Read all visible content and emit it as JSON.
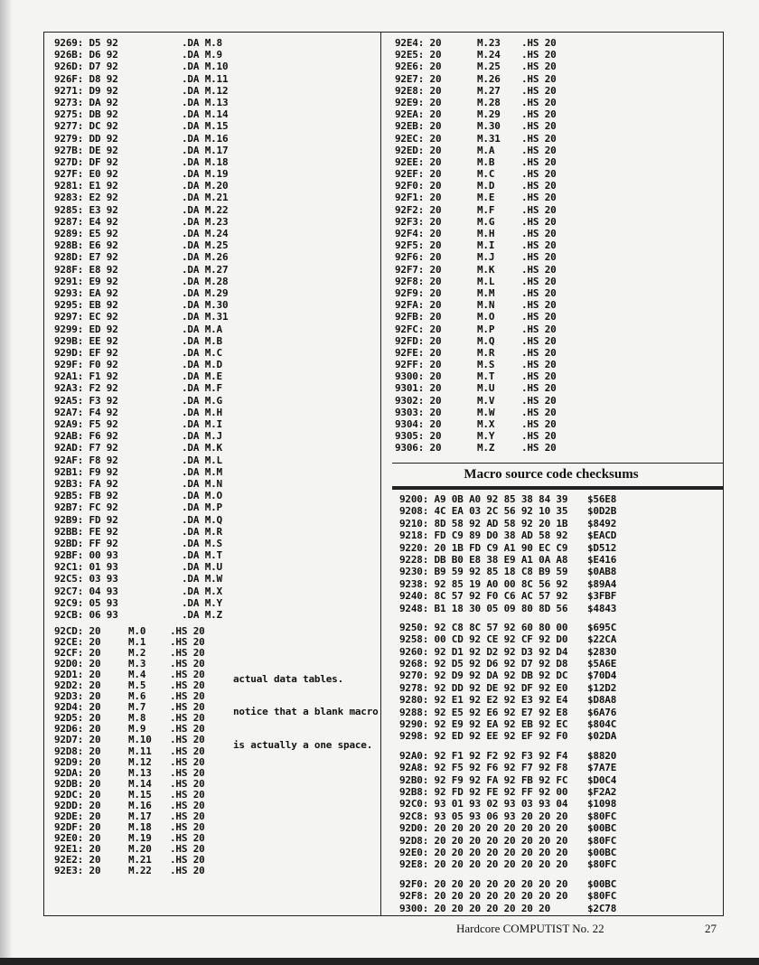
{
  "left_da": [
    [
      "9269: D5 92",
      ".DA M.8"
    ],
    [
      "926B: D6 92",
      ".DA M.9"
    ],
    [
      "926D: D7 92",
      ".DA M.10"
    ],
    [
      "926F: D8 92",
      ".DA M.11"
    ],
    [
      "9271: D9 92",
      ".DA M.12"
    ],
    [
      "9273: DA 92",
      ".DA M.13"
    ],
    [
      "9275: DB 92",
      ".DA M.14"
    ],
    [
      "9277: DC 92",
      ".DA M.15"
    ],
    [
      "9279: DD 92",
      ".DA M.16"
    ],
    [
      "927B: DE 92",
      ".DA M.17"
    ],
    [
      "927D: DF 92",
      ".DA M.18"
    ],
    [
      "927F: E0 92",
      ".DA M.19"
    ],
    [
      "9281: E1 92",
      ".DA M.20"
    ],
    [
      "9283: E2 92",
      ".DA M.21"
    ],
    [
      "9285: E3 92",
      ".DA M.22"
    ],
    [
      "9287: E4 92",
      ".DA M.23"
    ],
    [
      "9289: E5 92",
      ".DA M.24"
    ],
    [
      "928B: E6 92",
      ".DA M.25"
    ],
    [
      "928D: E7 92",
      ".DA M.26"
    ],
    [
      "928F: E8 92",
      ".DA M.27"
    ],
    [
      "9291: E9 92",
      ".DA M.28"
    ],
    [
      "9293: EA 92",
      ".DA M.29"
    ],
    [
      "9295: EB 92",
      ".DA M.30"
    ],
    [
      "9297: EC 92",
      ".DA M.31"
    ],
    [
      "9299: ED 92",
      ".DA M.A"
    ],
    [
      "929B: EE 92",
      ".DA M.B"
    ],
    [
      "929D: EF 92",
      ".DA M.C"
    ],
    [
      "929F: F0 92",
      ".DA M.D"
    ],
    [
      "92A1: F1 92",
      ".DA M.E"
    ],
    [
      "92A3: F2 92",
      ".DA M.F"
    ],
    [
      "92A5: F3 92",
      ".DA M.G"
    ],
    [
      "92A7: F4 92",
      ".DA M.H"
    ],
    [
      "92A9: F5 92",
      ".DA M.I"
    ],
    [
      "92AB: F6 92",
      ".DA M.J"
    ],
    [
      "92AD: F7 92",
      ".DA M.K"
    ],
    [
      "92AF: F8 92",
      ".DA M.L"
    ],
    [
      "92B1: F9 92",
      ".DA M.M"
    ],
    [
      "92B3: FA 92",
      ".DA M.N"
    ],
    [
      "92B5: FB 92",
      ".DA M.O"
    ],
    [
      "92B7: FC 92",
      ".DA M.P"
    ],
    [
      "92B9: FD 92",
      ".DA M.Q"
    ],
    [
      "92BB: FE 92",
      ".DA M.R"
    ],
    [
      "92BD: FF 92",
      ".DA M.S"
    ],
    [
      "92BF: 00 93",
      ".DA M.T"
    ],
    [
      "92C1: 01 93",
      ".DA M.U"
    ],
    [
      "92C5: 03 93",
      ".DA M.W"
    ],
    [
      "92C7: 04 93",
      ".DA M.X"
    ],
    [
      "92C9: 05 93",
      ".DA M.Y"
    ],
    [
      "92CB: 06 93",
      ".DA M.Z"
    ]
  ],
  "left_hs": [
    [
      "92CD: 20",
      "M.0",
      ".HS 20"
    ],
    [
      "92CE: 20",
      "M.1",
      ".HS 20"
    ],
    [
      "92CF: 20",
      "M.2",
      ".HS 20"
    ],
    [
      "92D0: 20",
      "M.3",
      ".HS 20"
    ],
    [
      "92D1: 20",
      "M.4",
      ".HS 20"
    ],
    [
      "92D2: 20",
      "M.5",
      ".HS 20"
    ],
    [
      "92D3: 20",
      "M.6",
      ".HS 20"
    ],
    [
      "92D4: 20",
      "M.7",
      ".HS 20"
    ],
    [
      "92D5: 20",
      "M.8",
      ".HS 20"
    ],
    [
      "92D6: 20",
      "M.9",
      ".HS 20"
    ],
    [
      "92D7: 20",
      "M.10",
      ".HS 20"
    ],
    [
      "92D8: 20",
      "M.11",
      ".HS 20"
    ],
    [
      "92D9: 20",
      "M.12",
      ".HS 20"
    ],
    [
      "92DA: 20",
      "M.13",
      ".HS 20"
    ],
    [
      "92DB: 20",
      "M.14",
      ".HS 20"
    ],
    [
      "92DC: 20",
      "M.15",
      ".HS 20"
    ],
    [
      "92DD: 20",
      "M.16",
      ".HS 20"
    ],
    [
      "92DE: 20",
      "M.17",
      ".HS 20"
    ],
    [
      "92DF: 20",
      "M.18",
      ".HS 20"
    ],
    [
      "92E0: 20",
      "M.19",
      ".HS 20"
    ],
    [
      "92E1: 20",
      "M.20",
      ".HS 20"
    ],
    [
      "92E2: 20",
      "M.21",
      ".HS 20"
    ],
    [
      "92E3: 20",
      "M.22",
      ".HS 20"
    ]
  ],
  "comment": [
    "actual data tables.",
    "notice that a blank macro",
    "is actually a one space."
  ],
  "right_hs": [
    [
      "92E4: 20",
      "M.23",
      ".HS 20"
    ],
    [
      "92E5: 20",
      "M.24",
      ".HS 20"
    ],
    [
      "92E6: 20",
      "M.25",
      ".HS 20"
    ],
    [
      "92E7: 20",
      "M.26",
      ".HS 20"
    ],
    [
      "92E8: 20",
      "M.27",
      ".HS 20"
    ],
    [
      "92E9: 20",
      "M.28",
      ".HS 20"
    ],
    [
      "92EA: 20",
      "M.29",
      ".HS 20"
    ],
    [
      "92EB: 20",
      "M.30",
      ".HS 20"
    ],
    [
      "92EC: 20",
      "M.31",
      ".HS 20"
    ],
    [
      "92ED: 20",
      "M.A",
      ".HS 20"
    ],
    [
      "92EE: 20",
      "M.B",
      ".HS 20"
    ],
    [
      "92EF: 20",
      "M.C",
      ".HS 20"
    ],
    [
      "92F0: 20",
      "M.D",
      ".HS 20"
    ],
    [
      "92F1: 20",
      "M.E",
      ".HS 20"
    ],
    [
      "92F2: 20",
      "M.F",
      ".HS 20"
    ],
    [
      "92F3: 20",
      "M.G",
      ".HS 20"
    ],
    [
      "92F4: 20",
      "M.H",
      ".HS 20"
    ],
    [
      "92F5: 20",
      "M.I",
      ".HS 20"
    ],
    [
      "92F6: 20",
      "M.J",
      ".HS 20"
    ],
    [
      "92F7: 20",
      "M.K",
      ".HS 20"
    ],
    [
      "92F8: 20",
      "M.L",
      ".HS 20"
    ],
    [
      "92F9: 20",
      "M.M",
      ".HS 20"
    ],
    [
      "92FA: 20",
      "M.N",
      ".HS 20"
    ],
    [
      "92FB: 20",
      "M.O",
      ".HS 20"
    ],
    [
      "92FC: 20",
      "M.P",
      ".HS 20"
    ],
    [
      "92FD: 20",
      "M.Q",
      ".HS 20"
    ],
    [
      "92FE: 20",
      "M.R",
      ".HS 20"
    ],
    [
      "92FF: 20",
      "M.S",
      ".HS 20"
    ],
    [
      "9300: 20",
      "M.T",
      ".HS 20"
    ],
    [
      "9301: 20",
      "M.U",
      ".HS 20"
    ],
    [
      "9302: 20",
      "M.V",
      ".HS 20"
    ],
    [
      "9303: 20",
      "M.W",
      ".HS 20"
    ],
    [
      "9304: 20",
      "M.X",
      ".HS 20"
    ],
    [
      "9305: 20",
      "M.Y",
      ".HS 20"
    ],
    [
      "9306: 20",
      "M.Z",
      ".HS 20"
    ]
  ],
  "checksums_title": "Macro source code checksums",
  "checksums": [
    [
      [
        "9200: A9 0B A0 92 85 38 84 39",
        "$56E8"
      ],
      [
        "9208: 4C EA 03 2C 56 92 10 35",
        "$0D2B"
      ],
      [
        "9210: 8D 58 92 AD 58 92 20 1B",
        "$8492"
      ],
      [
        "9218: FD C9 89 D0 38 AD 58 92",
        "$EACD"
      ],
      [
        "9220: 20 1B FD C9 A1 90 EC C9",
        "$D512"
      ],
      [
        "9228: DB B0 E8 38 E9 A1 0A A8",
        "$E416"
      ],
      [
        "9230: B9 59 92 85 18 C8 B9 59",
        "$0AB8"
      ],
      [
        "9238: 92 85 19 A0 00 8C 56 92",
        "$89A4"
      ],
      [
        "9240: 8C 57 92 F0 C6 AC 57 92",
        "$3FBF"
      ],
      [
        "9248: B1 18 30 05 09 80 8D 56",
        "$4843"
      ]
    ],
    [
      [
        "9250: 92 C8 8C 57 92 60 80 00",
        "$695C"
      ],
      [
        "9258: 00 CD 92 CE 92 CF 92 D0",
        "$22CA"
      ],
      [
        "9260: 92 D1 92 D2 92 D3 92 D4",
        "$2830"
      ],
      [
        "9268: 92 D5 92 D6 92 D7 92 D8",
        "$5A6E"
      ],
      [
        "9270: 92 D9 92 DA 92 DB 92 DC",
        "$70D4"
      ],
      [
        "9278: 92 DD 92 DE 92 DF 92 E0",
        "$12D2"
      ],
      [
        "9280: 92 E1 92 E2 92 E3 92 E4",
        "$D8A8"
      ],
      [
        "9288: 92 E5 92 E6 92 E7 92 E8",
        "$6A76"
      ],
      [
        "9290: 92 E9 92 EA 92 EB 92 EC",
        "$804C"
      ],
      [
        "9298: 92 ED 92 EE 92 EF 92 F0",
        "$02DA"
      ]
    ],
    [
      [
        "92A0: 92 F1 92 F2 92 F3 92 F4",
        "$8820"
      ],
      [
        "92A8: 92 F5 92 F6 92 F7 92 F8",
        "$7A7E"
      ],
      [
        "92B0: 92 F9 92 FA 92 FB 92 FC",
        "$D0C4"
      ],
      [
        "92B8: 92 FD 92 FE 92 FF 92 00",
        "$F2A2"
      ],
      [
        "92C0: 93 01 93 02 93 03 93 04",
        "$1098"
      ],
      [
        "92C8: 93 05 93 06 93 20 20 20",
        "$80FC"
      ],
      [
        "92D0: 20 20 20 20 20 20 20 20",
        "$00BC"
      ],
      [
        "92D8: 20 20 20 20 20 20 20 20",
        "$80FC"
      ],
      [
        "92E0: 20 20 20 20 20 20 20 20",
        "$00BC"
      ],
      [
        "92E8: 20 20 20 20 20 20 20 20",
        "$80FC"
      ]
    ],
    [
      [
        "92F0: 20 20 20 20 20 20 20 20",
        "$00BC"
      ],
      [
        "92F8: 20 20 20 20 20 20 20 20",
        "$80FC"
      ],
      [
        "9300: 20 20 20 20 20 20 20",
        "$2C78"
      ]
    ]
  ],
  "footer": {
    "publication": "Hardcore COMPUTIST No. 22",
    "page_number": "27"
  }
}
